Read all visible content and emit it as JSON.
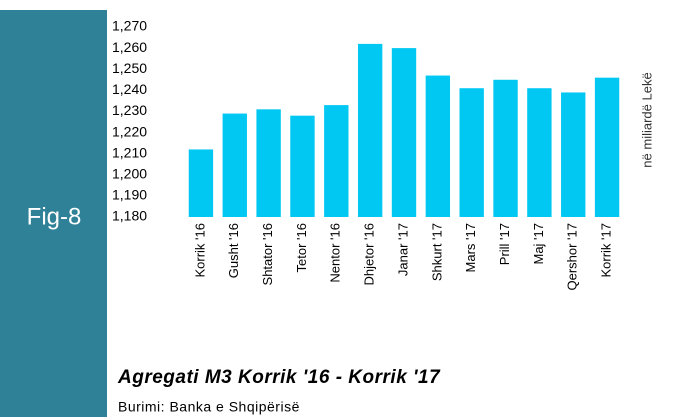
{
  "figure_label": "Fig-8",
  "chart_data": {
    "type": "bar",
    "title": "Agregati M3 Korrik '16 - Korrik '17",
    "source": "Burimi: Banka e Shqipërisë",
    "y_axis_label": "në miliardë Lekë",
    "categories": [
      "Korrik '16",
      "Gusht '16",
      "Shtator '16",
      "Tetor '16",
      "Nentor '16",
      "Dhjetor '16",
      "Janar '17",
      "Shkurt '17",
      "Mars '17",
      "Prill '17",
      "Maj '17",
      "Qershor '17",
      "Korrik '17"
    ],
    "values": [
      1212,
      1229,
      1231,
      1228,
      1233,
      1262,
      1260,
      1247,
      1241,
      1245,
      1241,
      1239,
      1246
    ],
    "color": "#00c8f2",
    "ylim": [
      1180,
      1270
    ],
    "yticks": [
      {
        "value": 1180,
        "label": "1,180"
      },
      {
        "value": 1190,
        "label": "1,190"
      },
      {
        "value": 1200,
        "label": "1,200"
      },
      {
        "value": 1210,
        "label": "1,210"
      },
      {
        "value": 1220,
        "label": "1,220"
      },
      {
        "value": 1230,
        "label": "1,230"
      },
      {
        "value": 1240,
        "label": "1,240"
      },
      {
        "value": 1250,
        "label": "1,250"
      },
      {
        "value": 1260,
        "label": "1,260"
      },
      {
        "value": 1270,
        "label": "1,270"
      }
    ],
    "grid": false
  }
}
